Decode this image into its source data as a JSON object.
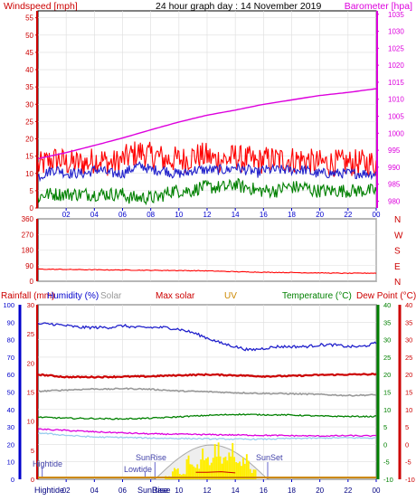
{
  "header": {
    "left_label": "Windspeed [mph]",
    "title": "24 hour graph day : 14 November 2019",
    "right_label": "Barometer [hpa]"
  },
  "colors": {
    "red": "#ff0000",
    "darkred": "#cc0000",
    "blue": "#2222cc",
    "navy": "#0000cc",
    "green": "#008000",
    "magenta": "#dd00dd",
    "grey": "#999999",
    "ltblue": "#99ccee",
    "orange": "#cc8800",
    "yellow": "#ffee00",
    "frame": "#000000"
  },
  "x_axis": {
    "ticks": [
      "02",
      "04",
      "06",
      "08",
      "10",
      "12",
      "14",
      "16",
      "18",
      "20",
      "22",
      "00"
    ],
    "bottom_ticks": [
      "02",
      "04",
      "06",
      "08",
      "10",
      "12",
      "14",
      "16",
      "18",
      "20",
      "22",
      "00"
    ],
    "bottom_left": "Hightide",
    "bottom_sunrise": "SunRise",
    "bottom_base": "Base"
  },
  "chart_data": [
    {
      "type": "line",
      "name": "wind-barometer",
      "y_left": {
        "label": "Windspeed [mph]",
        "ylim": [
          0,
          57
        ],
        "ticks": [
          "0",
          "5",
          "10",
          "15",
          "20",
          "25",
          "30",
          "35",
          "40",
          "45",
          "50",
          "55"
        ]
      },
      "y_right": {
        "label": "Barometer [hpa]",
        "ylim": [
          978,
          1036
        ],
        "ticks": [
          "980",
          "985",
          "990",
          "995",
          "1000",
          "1005",
          "1010",
          "1015",
          "1020",
          "1025",
          "1030",
          "1035"
        ]
      },
      "x_range_hours": [
        0,
        24
      ],
      "series": [
        {
          "role": "gust",
          "color": "red",
          "mean": [
            12,
            13,
            14,
            14,
            13,
            13,
            13,
            13,
            14,
            14,
            13,
            13,
            14,
            15,
            16,
            16,
            15,
            15,
            14,
            14,
            14,
            14,
            15,
            15,
            15,
            14,
            14,
            14,
            15,
            14,
            14,
            13,
            14,
            14,
            14,
            14,
            14,
            14,
            14,
            13,
            13,
            13,
            13,
            13,
            13,
            13,
            13,
            13,
            13
          ],
          "noise": 4
        },
        {
          "role": "avg",
          "color": "blue",
          "mean": [
            9,
            10,
            11,
            11,
            10,
            10,
            10,
            10,
            11,
            11,
            10,
            10,
            10,
            11,
            12,
            12,
            11,
            11,
            11,
            10,
            10,
            10,
            11,
            11,
            11,
            11,
            11,
            11,
            12,
            11,
            11,
            10,
            11,
            11,
            11,
            11,
            11,
            11,
            11,
            10,
            10,
            10,
            10,
            10,
            10,
            10,
            10,
            10,
            10
          ],
          "noise": 1.5
        },
        {
          "role": "lull",
          "color": "green",
          "mean": [
            3,
            4,
            4,
            4,
            4,
            4,
            4,
            4,
            4,
            4,
            4,
            4,
            4,
            3,
            3,
            3,
            3,
            3,
            4,
            5,
            5,
            5,
            5,
            6,
            6,
            6,
            6,
            6,
            7,
            6,
            6,
            5,
            5,
            5,
            5,
            6,
            6,
            6,
            6,
            5,
            5,
            5,
            5,
            5,
            5,
            5,
            5,
            5,
            5
          ],
          "noise": 2
        },
        {
          "role": "barometer",
          "color": "magenta",
          "x": [
            0,
            2,
            4,
            6,
            8,
            10,
            12,
            14,
            16,
            18,
            20,
            22,
            24
          ],
          "values": [
            992.5,
            994.3,
            996.4,
            998.6,
            1001.0,
            1003.3,
            1005.3,
            1006.8,
            1008.5,
            1009.8,
            1011.1,
            1012.0,
            1013.1
          ]
        }
      ]
    },
    {
      "type": "line",
      "name": "wind-direction",
      "y_left": {
        "ylim": [
          0,
          360
        ],
        "ticks": [
          "0",
          "90",
          "180",
          "270",
          "360"
        ]
      },
      "y_right": {
        "ticks": [
          "N",
          "E",
          "S",
          "W",
          "N"
        ]
      },
      "series": [
        {
          "role": "direction",
          "color": "red",
          "x": [
            0,
            2,
            4,
            6,
            8,
            10,
            12,
            14,
            16,
            18,
            20,
            22,
            24
          ],
          "values": [
            70,
            68,
            66,
            65,
            63,
            62,
            60,
            55,
            52,
            50,
            48,
            46,
            47
          ]
        }
      ]
    },
    {
      "type": "line",
      "name": "rain-humidity-temperature",
      "header_labels": [
        "Rainfall (mm)",
        "Humidity (%)",
        "Solar",
        "Max solar",
        "UV",
        "Temperature (°C)",
        "Dew Point (°C)"
      ],
      "y_rain": {
        "ylim": [
          0,
          30
        ],
        "ticks": [
          "0",
          "5",
          "10",
          "15",
          "20",
          "25",
          "30"
        ]
      },
      "y_humidity": {
        "ylim": [
          0,
          100
        ],
        "ticks": [
          "0",
          "10",
          "20",
          "30",
          "40",
          "50",
          "60",
          "70",
          "80",
          "90",
          "100"
        ]
      },
      "y_temp_a": {
        "ylim": [
          -10,
          40
        ],
        "ticks": [
          "-10",
          "-5",
          "0",
          "5",
          "10",
          "15",
          "20",
          "25",
          "30",
          "35",
          "40"
        ]
      },
      "y_temp_b": {
        "ylim": [
          -10,
          40
        ],
        "ticks": [
          "-10",
          "-5",
          "0",
          "5",
          "10",
          "15",
          "20",
          "25",
          "30",
          "35",
          "40"
        ]
      },
      "series": [
        {
          "role": "humidity",
          "color": "blue",
          "scale": "humidity",
          "x": [
            0,
            1,
            2,
            3,
            4,
            5,
            6,
            7,
            8,
            9,
            10,
            11,
            12,
            13,
            14,
            15,
            16,
            17,
            18,
            19,
            20,
            21,
            22,
            23,
            24
          ],
          "values": [
            89,
            89,
            88,
            87,
            87,
            87,
            88,
            87,
            87,
            87,
            86,
            84,
            81,
            78,
            76,
            74,
            75,
            76,
            76,
            76,
            77,
            77,
            76,
            76,
            78
          ]
        },
        {
          "role": "temperature-red",
          "color": "darkred",
          "scale": "temp",
          "x": [
            0,
            2,
            4,
            6,
            8,
            10,
            12,
            14,
            16,
            18,
            20,
            22,
            24
          ],
          "values": [
            20.0,
            19.3,
            19.3,
            19.4,
            19.5,
            19.8,
            20.0,
            19.8,
            19.5,
            19.6,
            19.9,
            20.0,
            20.1
          ]
        },
        {
          "role": "grey-line",
          "color": "grey",
          "scale": "temp",
          "x": [
            0,
            2,
            4,
            5,
            6,
            8,
            10,
            12,
            14,
            16,
            18,
            20,
            22,
            24
          ],
          "values": [
            15.2,
            15.6,
            15.9,
            15.8,
            16.0,
            15.8,
            15.3,
            15.1,
            14.8,
            14.6,
            14.5,
            14.3,
            14.0,
            14.2
          ]
        },
        {
          "role": "green-line",
          "color": "green",
          "scale": "temp",
          "x": [
            0,
            2,
            4,
            6,
            8,
            10,
            12,
            14,
            16,
            18,
            20,
            22,
            24
          ],
          "values": [
            7.8,
            7.5,
            7.4,
            7.3,
            7.5,
            7.9,
            8.3,
            8.6,
            8.5,
            8.4,
            8.1,
            8.0,
            8.0
          ]
        },
        {
          "role": "magenta-line",
          "color": "magenta",
          "scale": "temp",
          "x": [
            0,
            2,
            4,
            6,
            8,
            10,
            12,
            14,
            16,
            18,
            20,
            22,
            24
          ],
          "values": [
            4.4,
            4.0,
            3.6,
            3.3,
            3.0,
            2.9,
            2.8,
            2.7,
            2.6,
            2.5,
            2.4,
            2.5,
            2.4
          ]
        },
        {
          "role": "ltblue-line",
          "color": "ltblue",
          "scale": "temp",
          "x": [
            0,
            2,
            4,
            6,
            8,
            10,
            12,
            14,
            16,
            18,
            20,
            22,
            24
          ],
          "values": [
            3.3,
            2.6,
            2.1,
            2.0,
            1.8,
            1.7,
            1.6,
            1.5,
            1.5,
            1.7,
            1.8,
            1.9,
            1.8
          ]
        }
      ],
      "sun": {
        "sunrise_h": 8.3,
        "sunset_h": 16.3,
        "max_solar_peak": 5.9,
        "solar": [
          [
            9.0,
            0.5
          ],
          [
            9.5,
            1.8
          ],
          [
            10.0,
            1.0
          ],
          [
            10.5,
            3.2
          ],
          [
            11.0,
            2.0
          ],
          [
            11.5,
            4.4
          ],
          [
            12.0,
            3.0
          ],
          [
            12.5,
            5.3
          ],
          [
            13.0,
            3.5
          ],
          [
            13.5,
            4.8
          ],
          [
            14.0,
            2.5
          ],
          [
            14.5,
            3.8
          ],
          [
            15.0,
            1.5
          ],
          [
            15.5,
            1.0
          ]
        ],
        "labels": {
          "sunrise": "SunRise",
          "sunset": "SunSet",
          "hightide": "Hightide",
          "lowtide": "Lowtide"
        }
      }
    }
  ]
}
